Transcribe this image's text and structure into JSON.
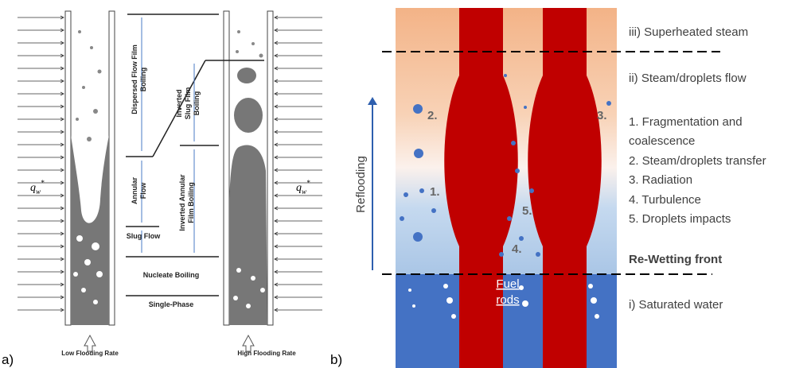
{
  "panel_a": {
    "label": "a)",
    "low_flooding_rate": "Low Flooding Rate",
    "high_flooding_rate": "High Flooding Rate",
    "heat_flux_left": {
      "symbol": "q",
      "subscript": "w",
      "superscript": "*"
    },
    "heat_flux_right": {
      "symbol": "q",
      "subscript": "w",
      "superscript": "*"
    },
    "regimes": {
      "dispersed_flow": [
        "Dispersed Flow Film",
        "Boiling"
      ],
      "inverted_slug": [
        "Inverted",
        "Slug Film",
        "Boiling"
      ],
      "annular_flow": [
        "Annular",
        "Flow"
      ],
      "inverted_annular": [
        "Inverted Annular",
        "Film Boiling"
      ],
      "slug_flow": "Slug Flow",
      "nucleate_boiling": "Nucleate Boiling",
      "single_phase": "Single-Phase"
    }
  },
  "panel_b": {
    "label": "b)",
    "reflooding": "Reflooding",
    "fuel_rods": [
      "Fuel",
      "rods"
    ],
    "zones": {
      "superheated": "iii) Superheated steam",
      "steam_droplets": "ii) Steam/droplets flow",
      "rewetting": "Re-Wetting front",
      "saturated": "i) Saturated water"
    },
    "mechanisms": [
      "1. Fragmentation and",
      "coalescence",
      "2. Steam/droplets transfer",
      "3. Radiation",
      "4. Turbulence",
      "5. Droplets impacts"
    ],
    "markers": [
      "1.",
      "2.",
      "3.",
      "4.",
      "5."
    ]
  }
}
